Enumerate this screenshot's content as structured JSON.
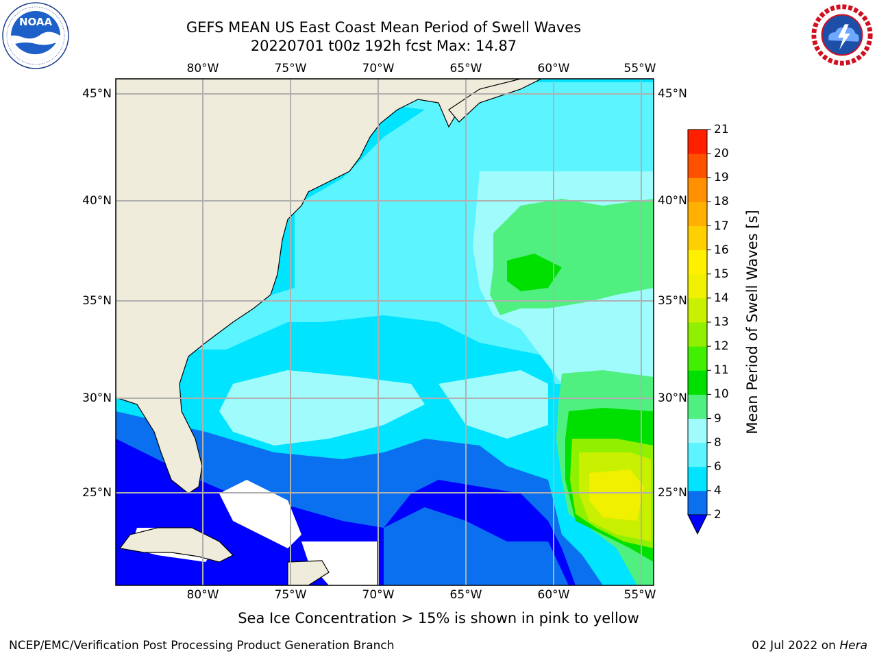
{
  "header": {
    "title_line1": "GEFS MEAN US East Coast Mean Period of Swell Waves",
    "title_line2": "20220701 t00z 192h fcst   Max: 14.87"
  },
  "logos": {
    "left": {
      "name": "NOAA",
      "ring_text": "NATIONAL OCEANIC AND ATMOSPHERIC ADMINISTRATION · U.S. DEPARTMENT OF COMMERCE"
    },
    "right": {
      "name": "NATIONAL WEATHER SERVICE"
    }
  },
  "map": {
    "lon_labels": [
      "80°W",
      "75°W",
      "70°W",
      "65°W",
      "60°W",
      "55°W"
    ],
    "lat_labels": [
      "45°N",
      "40°N",
      "35°N",
      "30°N",
      "25°N"
    ],
    "colors": {
      "land": "#efecdc",
      "no_data": "#ffffff",
      "grid": "#b0b0b0"
    }
  },
  "colorbar": {
    "label": "Mean Period of Swell Waves [s]",
    "ticks": [
      "2",
      "4",
      "6",
      "8",
      "9",
      "10",
      "11",
      "12",
      "13",
      "14",
      "15",
      "16",
      "17",
      "18",
      "19",
      "20",
      "21"
    ],
    "extend": "min",
    "extend_color": "#0000ff",
    "colors": [
      "#0a70f0",
      "#00e4ff",
      "#5cf4ff",
      "#a0fcfc",
      "#50f080",
      "#00e000",
      "#40f000",
      "#90f000",
      "#c8f000",
      "#f0f000",
      "#fff000",
      "#ffd000",
      "#ffb000",
      "#ff9000",
      "#ff5000",
      "#ff2000"
    ]
  },
  "note": "Sea Ice Concentration > 15% is shown in pink to yellow",
  "footer": {
    "left": "NCEP/EMC/Verification Post Processing Product Generation Branch",
    "date": "02 Jul 2022 on ",
    "machine": "Hera"
  }
}
